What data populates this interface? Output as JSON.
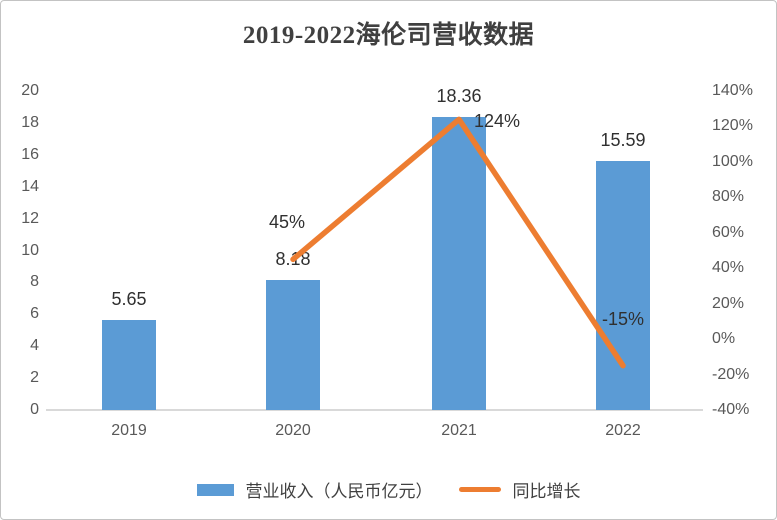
{
  "title": "2019-2022海伦司营收数据",
  "chart_data": {
    "type": "bar",
    "subtype": "combo-bar-line-dual-axis",
    "title": "2019-2022海伦司营收数据",
    "categories": [
      "2019",
      "2020",
      "2021",
      "2022"
    ],
    "series": [
      {
        "name": "营业收入（人民币亿元）",
        "type": "bar",
        "axis": "left",
        "values": [
          5.65,
          8.18,
          18.36,
          15.59
        ],
        "labels": [
          "5.65",
          "8.18",
          "18.36",
          "15.59"
        ],
        "color": "#5B9BD5"
      },
      {
        "name": "同比增长",
        "type": "line",
        "axis": "right",
        "categories": [
          "2020",
          "2021",
          "2022"
        ],
        "values": [
          45,
          124,
          -15
        ],
        "labels": [
          "45%",
          "124%",
          "-15%"
        ],
        "color": "#ED7D31"
      }
    ],
    "left_axis": {
      "min": 0,
      "max": 20,
      "step": 2,
      "ticks_top_to_bottom": [
        "20",
        "18",
        "16",
        "14",
        "12",
        "10",
        "8",
        "6",
        "4",
        "2",
        "0"
      ]
    },
    "right_axis": {
      "min": -40,
      "max": 140,
      "step": 20,
      "ticks_top_to_bottom": [
        "140%",
        "120%",
        "100%",
        "80%",
        "60%",
        "40%",
        "20%",
        "0%",
        "-20%",
        "-40%"
      ]
    },
    "grid": false,
    "legend_position": "bottom"
  },
  "legend": {
    "bar_label": "营业收入（人民币亿元）",
    "line_label": "同比增长"
  },
  "colors": {
    "bar": "#5B9BD5",
    "line": "#ED7D31",
    "axis_line": "#d9d9d9",
    "tick_text": "#595959",
    "data_label_text": "#303030",
    "title_text": "#404040"
  }
}
